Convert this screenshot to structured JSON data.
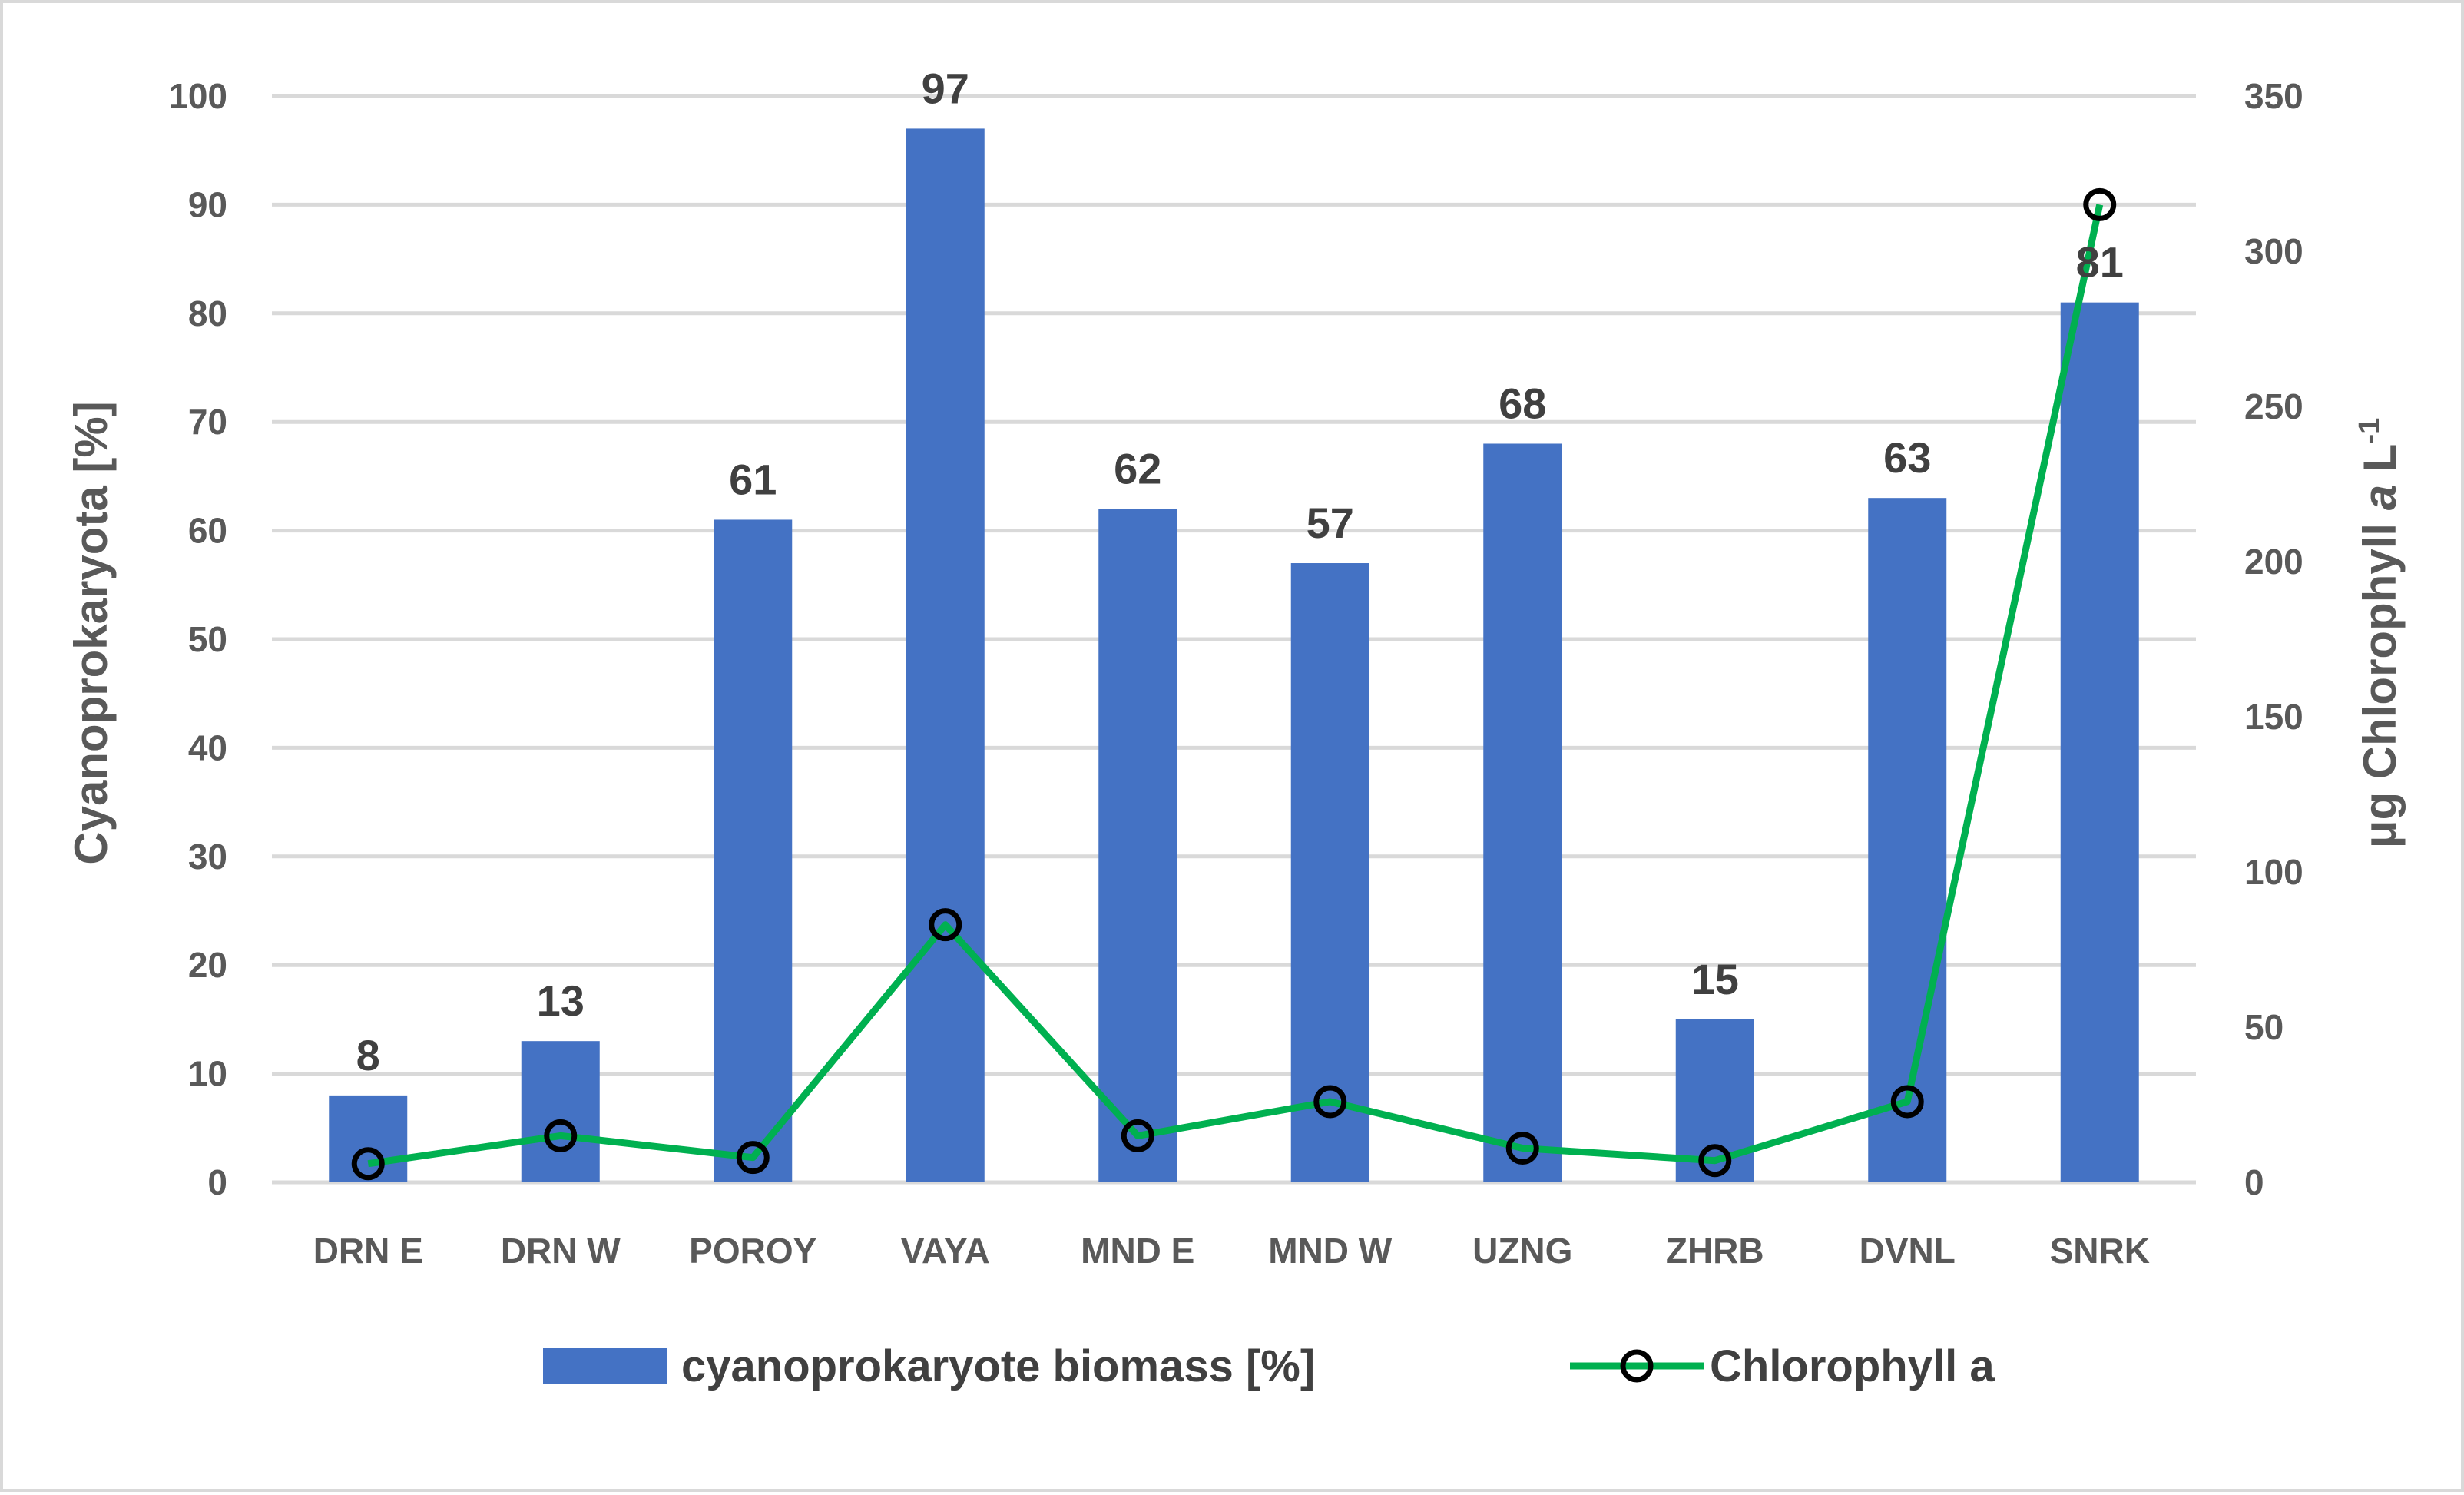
{
  "chart_data": {
    "type": "bar+line",
    "categories": [
      "DRN E",
      "DRN W",
      "POROY",
      "VAYA",
      "MND E",
      "MND W",
      "UZNG",
      "ZHRB",
      "DVNL",
      "SNRK"
    ],
    "series": [
      {
        "name": "cyanoprokaryote biomass [%]",
        "type": "bar",
        "axis": "left",
        "color": "#4472c4",
        "values": [
          8,
          13,
          61,
          97,
          62,
          57,
          68,
          15,
          63,
          81
        ],
        "labels": [
          "8",
          "13",
          "61",
          "97",
          "62",
          "57",
          "68",
          "15",
          "63",
          "81"
        ]
      },
      {
        "name": "Chlorophyll a",
        "type": "line",
        "axis": "right",
        "color": "#00b050",
        "marker_color": "#000000",
        "values": [
          6,
          15,
          8,
          83,
          15,
          26,
          11,
          7,
          26,
          315
        ]
      }
    ],
    "y_left": {
      "title": "Cyanoprokaryota [%]",
      "min": 0,
      "max": 100,
      "step": 10,
      "ticks": [
        "0",
        "10",
        "20",
        "30",
        "40",
        "50",
        "60",
        "70",
        "80",
        "90",
        "100"
      ]
    },
    "y_right": {
      "title_main": "μg Chlorophyll ",
      "title_italic": "a",
      "title_unit": " L",
      "title_sup": "-1",
      "min": 0,
      "max": 350,
      "step": 50,
      "ticks": [
        "0",
        "50",
        "100",
        "150",
        "200",
        "250",
        "300",
        "350"
      ]
    },
    "grid": true,
    "legend_position": "bottom",
    "gridline_color": "#d9d9d9"
  }
}
